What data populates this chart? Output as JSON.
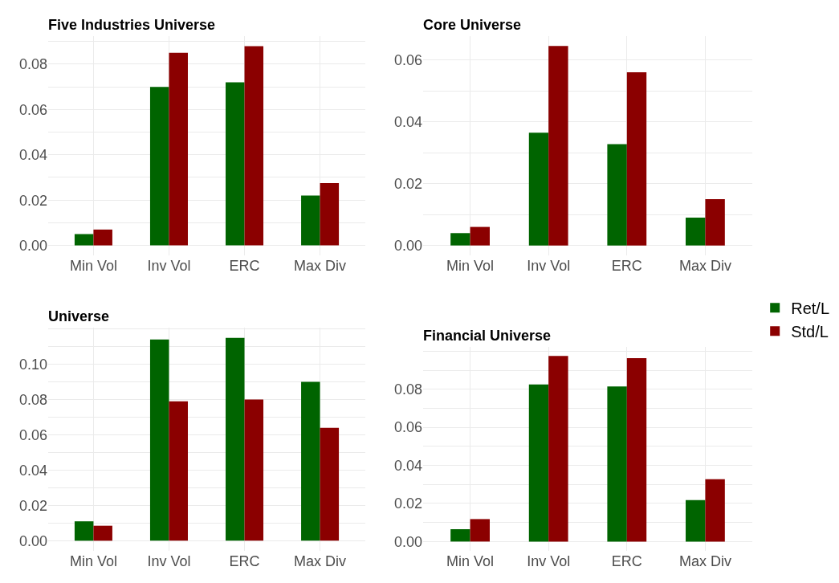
{
  "chart_data": [
    {
      "type": "bar",
      "title": "Five Industries Universe",
      "categories": [
        "Min Vol",
        "Inv Vol",
        "ERC",
        "Max Div"
      ],
      "series": [
        {
          "color": "#006400",
          "values": [
            0.005,
            0.07,
            0.072,
            0.022
          ]
        },
        {
          "color": "#8b0000",
          "values": [
            0.007,
            0.085,
            0.088,
            0.0275
          ]
        }
      ],
      "ylim": [
        -0.0044,
        0.0924
      ],
      "yticks": [
        {
          "value": 0,
          "label": "0.00"
        },
        {
          "value": 0.01,
          "label": null
        },
        {
          "value": 0.02,
          "label": "0.02"
        },
        {
          "value": 0.03,
          "label": null
        },
        {
          "value": 0.04,
          "label": "0.04"
        },
        {
          "value": 0.05,
          "label": null
        },
        {
          "value": 0.06,
          "label": "0.06"
        },
        {
          "value": 0.07,
          "label": null
        },
        {
          "value": 0.08,
          "label": "0.08"
        },
        {
          "value": 0.09,
          "label": null
        }
      ],
      "grid": true,
      "legend": false
    },
    {
      "type": "bar",
      "title": "Core Universe",
      "categories": [
        "Min Vol",
        "Inv Vol",
        "ERC",
        "Max Div"
      ],
      "series": [
        {
          "color": "#006400",
          "values": [
            0.004,
            0.0365,
            0.0328,
            0.009
          ]
        },
        {
          "color": "#8b0000",
          "values": [
            0.006,
            0.0645,
            0.056,
            0.015
          ]
        }
      ],
      "ylim": [
        -0.0032,
        0.0677
      ],
      "yticks": [
        {
          "value": 0,
          "label": "0.00"
        },
        {
          "value": 0.01,
          "label": null
        },
        {
          "value": 0.02,
          "label": "0.02"
        },
        {
          "value": 0.03,
          "label": null
        },
        {
          "value": 0.04,
          "label": "0.04"
        },
        {
          "value": 0.05,
          "label": null
        },
        {
          "value": 0.06,
          "label": "0.06"
        }
      ],
      "grid": true,
      "legend": false
    },
    {
      "type": "bar",
      "title": "Universe",
      "categories": [
        "Min Vol",
        "Inv Vol",
        "ERC",
        "Max Div"
      ],
      "series": [
        {
          "color": "#006400",
          "values": [
            0.011,
            0.114,
            0.115,
            0.09
          ]
        },
        {
          "color": "#8b0000",
          "values": [
            0.0085,
            0.079,
            0.08,
            0.064
          ]
        }
      ],
      "ylim": [
        -0.00575,
        0.12075
      ],
      "yticks": [
        {
          "value": 0,
          "label": "0.00"
        },
        {
          "value": 0.01,
          "label": null
        },
        {
          "value": 0.02,
          "label": "0.02"
        },
        {
          "value": 0.03,
          "label": null
        },
        {
          "value": 0.04,
          "label": "0.04"
        },
        {
          "value": 0.05,
          "label": null
        },
        {
          "value": 0.06,
          "label": "0.06"
        },
        {
          "value": 0.07,
          "label": null
        },
        {
          "value": 0.08,
          "label": "0.08"
        },
        {
          "value": 0.09,
          "label": null
        },
        {
          "value": 0.1,
          "label": "0.10"
        },
        {
          "value": 0.11,
          "label": null
        },
        {
          "value": 0.12,
          "label": null
        }
      ],
      "grid": true,
      "legend": false
    },
    {
      "type": "bar",
      "title": "Financial Universe",
      "categories": [
        "Min Vol",
        "Inv Vol",
        "ERC",
        "Max Div"
      ],
      "series": [
        {
          "name": "Ret/L",
          "color": "#006400",
          "values": [
            0.0065,
            0.0825,
            0.0815,
            0.0218
          ]
        },
        {
          "name": "Std/L",
          "color": "#8b0000",
          "values": [
            0.0118,
            0.0975,
            0.0963,
            0.0328
          ]
        }
      ],
      "ylim": [
        -0.0049,
        0.1024
      ],
      "yticks": [
        {
          "value": 0,
          "label": "0.00"
        },
        {
          "value": 0.01,
          "label": null
        },
        {
          "value": 0.02,
          "label": "0.02"
        },
        {
          "value": 0.03,
          "label": null
        },
        {
          "value": 0.04,
          "label": "0.04"
        },
        {
          "value": 0.05,
          "label": null
        },
        {
          "value": 0.06,
          "label": "0.06"
        },
        {
          "value": 0.07,
          "label": null
        },
        {
          "value": 0.08,
          "label": "0.08"
        },
        {
          "value": 0.09,
          "label": null
        },
        {
          "value": 0.1,
          "label": null
        }
      ],
      "grid": true,
      "legend": "right"
    }
  ]
}
